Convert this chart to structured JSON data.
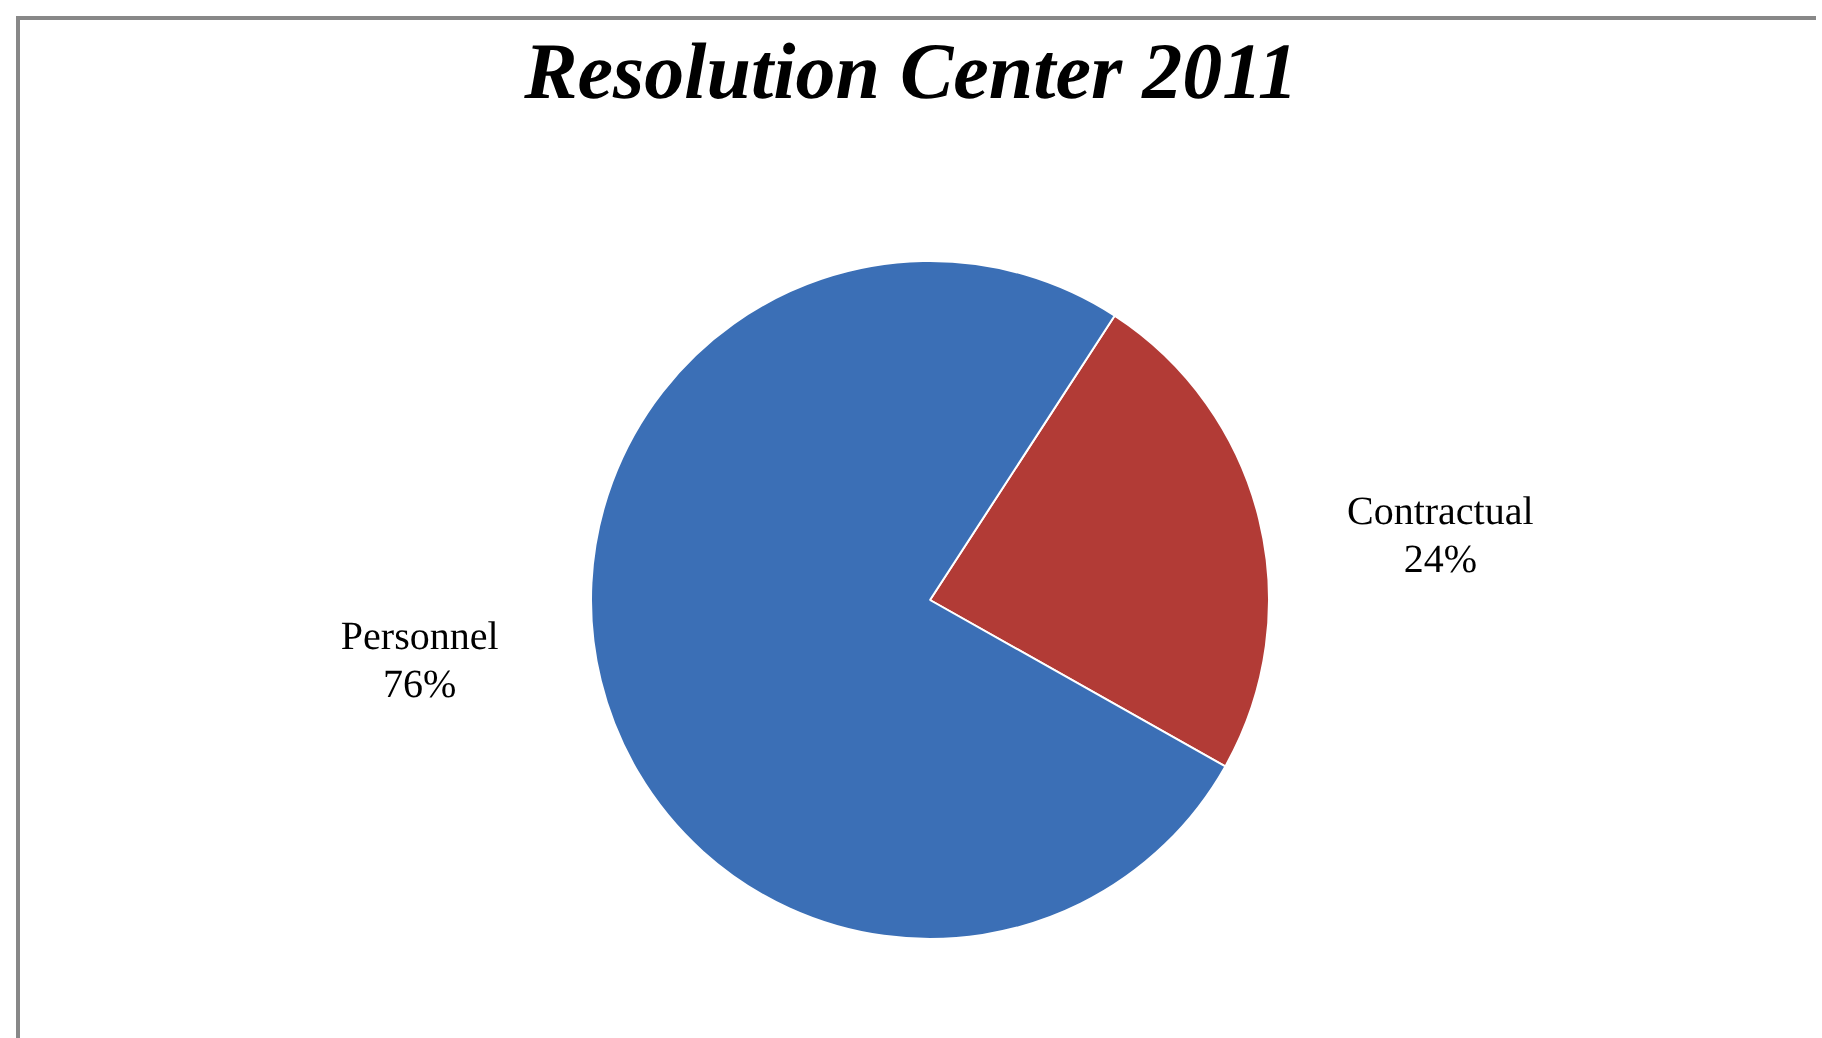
{
  "chart_data": {
    "type": "pie",
    "title": "Resolution Center 2011",
    "categories": [
      "Contractual",
      "Personnel"
    ],
    "values": [
      24,
      76
    ],
    "colors": [
      "#b23b36",
      "#3b6fb6"
    ],
    "value_labels": [
      "24%",
      "76%"
    ],
    "legend": false
  }
}
